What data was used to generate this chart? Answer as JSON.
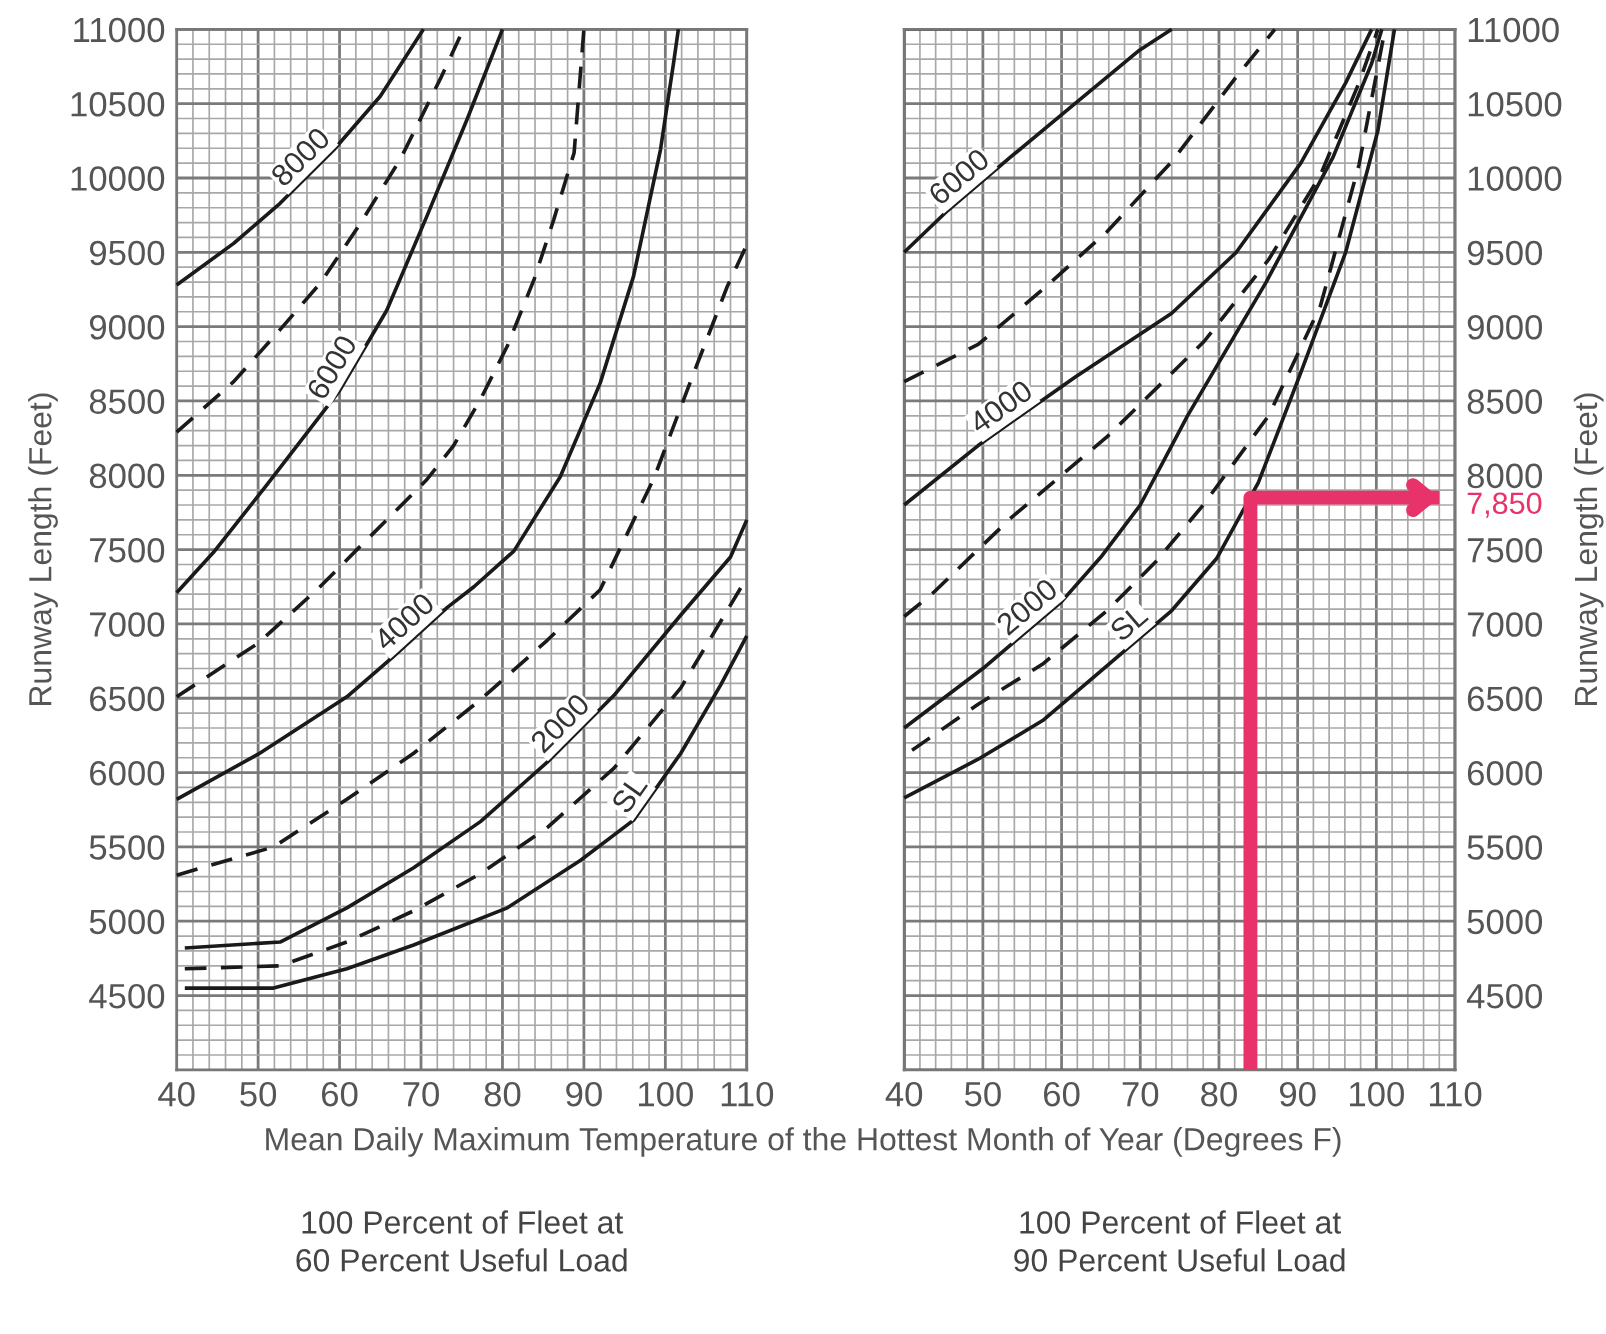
{
  "chart_data": [
    {
      "type": "line",
      "xlabel": "Mean Daily Maximum Temperature of the Hottest Month of Year (Degrees F)",
      "ylabel": "Runway Length (Feet)",
      "xlim": [
        40,
        110
      ],
      "xticks": [
        40,
        50,
        60,
        70,
        80,
        90,
        100,
        110
      ],
      "ylim": [
        4000,
        11000
      ],
      "yticks": [
        4500,
        5000,
        5500,
        6000,
        6500,
        7000,
        7500,
        8000,
        8500,
        9000,
        9500,
        10000,
        10500,
        11000
      ],
      "grid": true,
      "annotations": [
        "100 Percent of Fleet at\n60 Percent Useful Load"
      ],
      "series": [
        {
          "name": "8000",
          "color": "#1a1a1a",
          "line_style": "solid",
          "x": [
            40,
            47,
            52.7,
            59.3,
            65,
            70.3
          ],
          "values": [
            9280,
            9560,
            9830,
            10190,
            10550,
            11000
          ]
        },
        {
          "color": "#1a1a1a",
          "line_style": "dashed",
          "x": [
            40,
            47,
            52.7,
            57.6,
            62.5,
            67.5,
            72.4,
            75.2
          ],
          "values": [
            8290,
            8630,
            8980,
            9290,
            9690,
            10130,
            10670,
            11000
          ]
        },
        {
          "name": "6000",
          "color": "#1a1a1a",
          "line_style": "solid",
          "x": [
            40,
            44.5,
            51,
            60,
            65.8,
            70.7,
            75.7,
            80
          ],
          "values": [
            7210,
            7480,
            7930,
            8570,
            9110,
            9740,
            10400,
            11000
          ]
        },
        {
          "color": "#1a1a1a",
          "line_style": "dashed",
          "x": [
            40,
            50,
            53,
            57.6,
            62.5,
            65.8,
            70.7,
            74,
            77.3,
            80.6,
            83.9,
            86.3,
            88.8,
            90
          ],
          "values": [
            6510,
            6870,
            7020,
            7250,
            7520,
            7700,
            7970,
            8200,
            8510,
            8870,
            9320,
            9720,
            10170,
            11000
          ]
        },
        {
          "name": "4000",
          "color": "#1a1a1a",
          "line_style": "solid",
          "x": [
            40,
            50.2,
            60.9,
            66.6,
            73.2,
            76.5,
            81.4,
            87.1,
            92,
            96.1,
            99.4,
            101,
            101.6
          ],
          "values": [
            5820,
            6130,
            6510,
            6780,
            7110,
            7250,
            7490,
            7990,
            8620,
            9340,
            10190,
            10770,
            11000
          ]
        },
        {
          "color": "#1a1a1a",
          "line_style": "dashed",
          "x": [
            40,
            51.9,
            60.9,
            69.1,
            77.3,
            85.5,
            92,
            98.6,
            103.5,
            107.6,
            110
          ],
          "values": [
            5310,
            5500,
            5820,
            6130,
            6490,
            6890,
            7230,
            7980,
            8690,
            9270,
            9550
          ]
        },
        {
          "name": "2000",
          "color": "#1a1a1a",
          "line_style": "solid",
          "x": [
            41,
            52.7,
            60.9,
            69.1,
            77.3,
            85.5,
            93.7,
            101.9,
            108,
            110
          ],
          "values": [
            4820,
            4860,
            5090,
            5360,
            5670,
            6070,
            6520,
            7060,
            7450,
            7700
          ]
        },
        {
          "color": "#1a1a1a",
          "line_style": "dashed",
          "x": [
            41,
            52.7,
            60.9,
            69.1,
            77.3,
            85.5,
            93.7,
            101.9,
            110
          ],
          "values": [
            4680,
            4700,
            4860,
            5070,
            5320,
            5630,
            6030,
            6570,
            7310
          ]
        },
        {
          "name": "SL",
          "color": "#1a1a1a",
          "line_style": "solid",
          "x": [
            41,
            51.9,
            60.9,
            69.1,
            80.6,
            89.6,
            96.1,
            101.9,
            106.8,
            110
          ],
          "values": [
            4550,
            4550,
            4680,
            4840,
            5090,
            5410,
            5680,
            6130,
            6590,
            6920
          ]
        }
      ]
    },
    {
      "type": "line",
      "y2label": "Runway Length (Feet)",
      "xlim": [
        40,
        110
      ],
      "xticks": [
        40,
        50,
        60,
        70,
        80,
        90,
        100,
        110
      ],
      "y2lim": [
        4000,
        11000
      ],
      "y2ticks": [
        4500,
        5000,
        5500,
        6000,
        6500,
        7000,
        7500,
        8000,
        8500,
        9000,
        9500,
        10000,
        10500,
        11000
      ],
      "grid": true,
      "annotations": [
        "7,850",
        "100 Percent of Fleet at\n90 Percent Useful Load"
      ],
      "series": [
        {
          "name": "6000",
          "axis": "y2",
          "color": "#1a1a1a",
          "line_style": "solid",
          "x": [
            40,
            45.3,
            53.5,
            61.7,
            69.9,
            74
          ],
          "values": [
            9500,
            9770,
            10140,
            10500,
            10860,
            11000
          ]
        },
        {
          "axis": "y2",
          "color": "#1a1a1a",
          "line_style": "dashed",
          "x": [
            40,
            49.4,
            57.6,
            65.8,
            74,
            82.2,
            87.1
          ],
          "values": [
            8630,
            8880,
            9250,
            9640,
            10110,
            10680,
            11000
          ]
        },
        {
          "name": "4000",
          "axis": "y2",
          "color": "#1a1a1a",
          "line_style": "solid",
          "x": [
            40,
            49.4,
            61.7,
            74,
            82.2,
            90.4,
            96.1,
            99.4
          ],
          "values": [
            7800,
            8200,
            8660,
            9090,
            9500,
            10100,
            10640,
            11000
          ]
        },
        {
          "axis": "y2",
          "color": "#1a1a1a",
          "line_style": "dashed",
          "x": [
            40,
            43.7,
            53.5,
            65.8,
            78.1,
            86.3,
            92.9,
            97.8,
            100.2
          ],
          "values": [
            7050,
            7210,
            7710,
            8260,
            8900,
            9450,
            10020,
            10640,
            11000
          ]
        },
        {
          "name": "2000",
          "axis": "y2",
          "color": "#1a1a1a",
          "line_style": "solid",
          "x": [
            40,
            50,
            60,
            65,
            70,
            76,
            86,
            94.5,
            99.4,
            100.7
          ],
          "values": [
            6300,
            6700,
            7150,
            7450,
            7800,
            8400,
            9300,
            10140,
            10770,
            11000
          ]
        },
        {
          "axis": "y2",
          "color": "#1a1a1a",
          "line_style": "dashed",
          "x": [
            41,
            49.4,
            57.6,
            65.8,
            72,
            78,
            86.3,
            92.9,
            97.8,
            101.1
          ],
          "values": [
            6150,
            6460,
            6730,
            7090,
            7420,
            7800,
            8400,
            9140,
            10090,
            11000
          ]
        },
        {
          "name": "SL",
          "axis": "y2",
          "color": "#1a1a1a",
          "line_style": "solid",
          "x": [
            40,
            49.4,
            57.6,
            65.8,
            74,
            79.7,
            85,
            90.4,
            96.1,
            100.2,
            102.3
          ],
          "values": [
            5830,
            6090,
            6350,
            6720,
            7090,
            7440,
            7950,
            8690,
            9500,
            10320,
            11000
          ]
        },
        {
          "axis": "y2",
          "color": "#e8336a",
          "line_style": "solid",
          "x": [
            84,
            84,
            108
          ],
          "values": [
            4000,
            7850,
            7850
          ]
        }
      ]
    }
  ]
}
